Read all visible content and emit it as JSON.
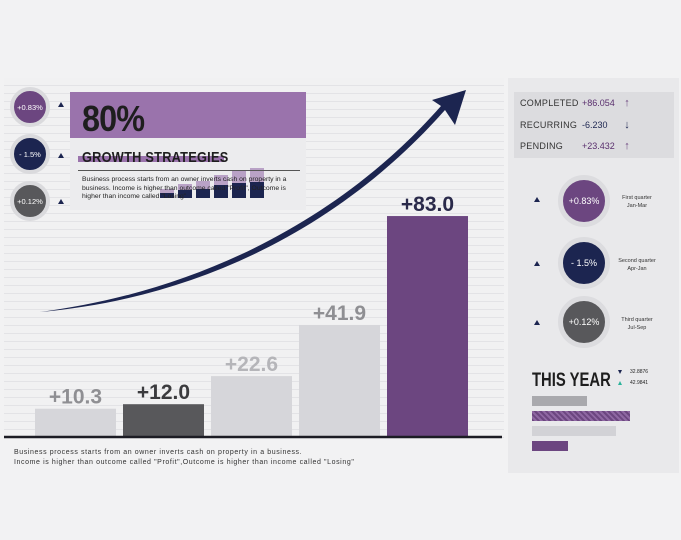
{
  "chart_data": {
    "type": "bar",
    "categories": [
      "",
      "",
      "",
      "",
      ""
    ],
    "values": [
      10.3,
      12.0,
      22.6,
      41.9,
      83.0
    ],
    "value_labels": [
      "+10.3",
      "+12.0",
      "+22.6",
      "+41.9",
      "+83.0"
    ],
    "ylim": [
      0,
      100
    ],
    "grid": false
  },
  "colors": {
    "bars": [
      "#d6d6da",
      "#58585b",
      "#d6d6da",
      "#d6d6da",
      "#6c4680"
    ],
    "labels": [
      "#8f8f93",
      "#3b3b3e",
      "#b5b5b9",
      "#8f8f93",
      "#2a2a4a"
    ],
    "purple": "#6c4680",
    "navy": "#1c2550",
    "gray": "#58585b"
  },
  "growth": {
    "percent": "80%",
    "title": "GROWTH STRATEGIES",
    "text": "Business process starts from an owner inverts cash on property in a business. Income is higher than outcome called \"Profit\", Outcome is higher than income called \"Losing\"",
    "mini_bars": [
      0.3,
      0.45,
      0.55,
      0.75,
      0.9,
      1.0
    ]
  },
  "left_badges": [
    "+0.83%",
    "- 1.5%",
    "+0.12%"
  ],
  "footer": {
    "line1": "Business process starts from an owner inverts cash on property in a business.",
    "line2": "Income is higher than outcome called \"Profit\",Outcome is higher than income called \"Losing\""
  },
  "stats": [
    {
      "label": "COMPLETED",
      "value": "+86.054",
      "arrow": "↑",
      "color": "#6c4680"
    },
    {
      "label": "RECURRING",
      "value": "-6.230",
      "arrow": "↓",
      "color": "#1c2550"
    },
    {
      "label": "PENDING",
      "value": "+23.432",
      "arrow": "↑",
      "color": "#6c4680"
    }
  ],
  "quarters": [
    {
      "value": "+0.83%",
      "label1": "First quarter",
      "label2": "Jan-Mar"
    },
    {
      "value": "- 1.5%",
      "label1": "Second quarter",
      "label2": "Apr-Jan"
    },
    {
      "value": "+0.12%",
      "label1": "Third quarter",
      "label2": "Jul-Sep"
    }
  ],
  "this_year": {
    "title": "THIS YEAR",
    "value1": "32.8876",
    "value2": "42.9841",
    "bars": [
      0.46,
      0.82,
      0.7,
      0.3
    ]
  }
}
